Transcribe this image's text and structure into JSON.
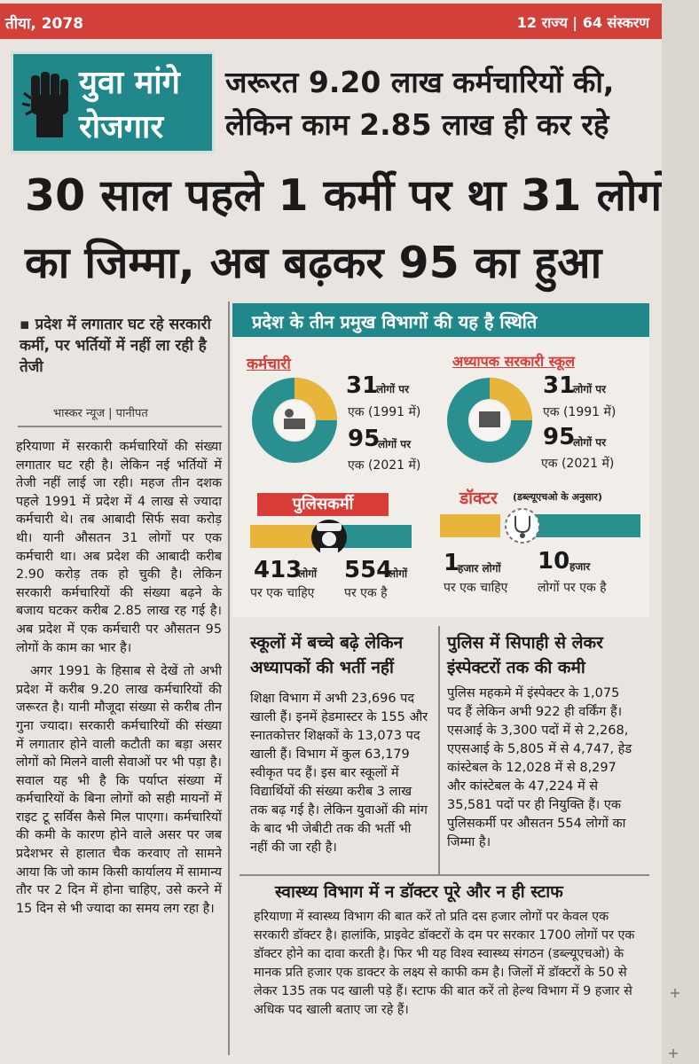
{
  "topbar": {
    "left": "तीया, 2078",
    "right": "12 राज्य | 64 संस्करण"
  },
  "badge": {
    "line1": "युवा मांगे",
    "line2": "रोजगार"
  },
  "headline": {
    "kicker1": "जरूरत 9.20 लाख कर्मचारियों की,",
    "kicker2": "लेकिन काम 2.85 लाख ही कर रहे",
    "main1": "30 साल पहले 1 कर्मी पर था 31 लोगों",
    "main2": "का जिम्मा, अब बढ़कर 95 का हुआ"
  },
  "subhead": "▪ प्रदेश में लगातार घट रहे सरकारी कर्मी, पर भर्तियों में नहीं ला रही है तेजी",
  "byline": "भास्कर न्यूज | पानीपत",
  "body_left": [
    "हरियाणा में सरकारी कर्मचारियों की संख्या लगातार घट रही है। लेकिन नई भर्तियों में तेजी नहीं लाई जा रही। महज तीन दशक पहले 1991 में प्रदेश में 4 लाख से ज्यादा कर्मचारी थे। तब आबादी सिर्फ सवा करोड़ थी। यानी औसतन 31 लोगों पर एक कर्मचारी था। अब प्रदेश की आबादी करीब 2.90 करोड़ तक हो चुकी है। लेकिन सरकारी कर्मचारियों की संख्या बढ़ने के बजाय घटकर करीब 2.85 लाख रह गई है। अब प्रदेश में एक कर्मचारी पर औसतन 95 लोगों के काम का भार है।",
    "अगर 1991 के हिसाब से देखें तो अभी प्रदेश में करीब 9.20 लाख कर्मचारियों की जरूरत है। यानी मौजूदा संख्या से करीब तीन गुना ज्यादा। सरकारी कर्मचारियों की संख्या में लगातार होने वाली कटौती का बड़ा असर लोगों को मिलने वाली सेवाओं पर भी पड़ा है। सवाल यह भी है कि पर्याप्त संख्या में कर्मचारियों के बिना लोगों को सही मायनों में राइट टू सर्विस कैसे मिल पाएगा। कर्मचारियों की कमी के कारण होने वाले असर पर जब प्रदेशभर से हालात चैक करवाए तो सामने आया कि जो काम किसी कार्यालय में सामान्य तौर पर 2 दिन में होना चाहिए, उसे करने में 15 दिन से भी ज्यादा का समय लग रहा है।"
  ],
  "infographic": {
    "header": "प्रदेश के तीन प्रमुख विभागों की यह है स्थिति",
    "employees": {
      "label": "कर्मचारी",
      "n1": "31",
      "n1_unit": "लोगों पर",
      "n1_sub": "एक (1991 में)",
      "n2": "95",
      "n2_unit": "लोगों पर",
      "n2_sub": "एक (2021 में)"
    },
    "teachers": {
      "label": "अध्यापक सरकारी स्कूल",
      "n1": "31",
      "n1_unit": "लोगों पर",
      "n1_sub": "एक (1991 में)",
      "n2": "95",
      "n2_unit": "लोगों पर",
      "n2_sub": "एक (2021 में)"
    },
    "police": {
      "label": "पुलिसकर्मी",
      "n1": "413",
      "n1_unit": "लोगों",
      "n1_sub": "पर एक चाहिए",
      "n2": "554",
      "n2_unit": "लोगों",
      "n2_sub": "पर एक है"
    },
    "doctors": {
      "label": "डॉक्टर",
      "note": "(डब्ल्यूएचओ के अनुसार)",
      "n1": "1",
      "n1_unit": "हजार लोगों",
      "n1_sub": "पर एक चाहिए",
      "n2": "10",
      "n2_unit": "हजार",
      "n2_sub": "लोगों पर एक है"
    },
    "colors": {
      "teal": "#2a8f8f",
      "yellow": "#e9b43a",
      "red": "#d93c37"
    }
  },
  "schools": {
    "title1": "स्कूलों में बच्चे बढ़े लेकिन",
    "title2": "अध्यापकों की भर्ती नहीं",
    "body": "शिक्षा विभाग में अभी 23,696 पद खाली हैं। इनमें हेडमास्टर के 155 और स्नातकोत्तर शिक्षकों के 13,073 पद खाली हैं। विभाग में कुल 63,179 स्वीकृत पद हैं। इस बार स्कूलों में विद्यार्थियों की संख्या करीब 3 लाख तक बढ़ गई है। लेकिन युवाओं की मांग के बाद भी जेबीटी तक की भर्ती भी नहीं की जा रही है।"
  },
  "police_col": {
    "title1": "पुलिस में सिपाही से लेकर",
    "title2": "इंस्पेक्टरों तक की कमी",
    "body": "पुलिस महकमे में इंस्पेक्टर के 1,075 पद हैं लेकिन अभी 922 ही वर्किंग हैं। एसआई के 3,300 पदों में से 2,268, एएसआई के 5,805 में से 4,747, हेड कांस्टेबल के 12,028 में से 8,297 और कांस्टेबल के 47,224 में से 35,581 पदों पर ही नियुक्ति हैं। एक पुलिसकर्मी पर औसतन 554 लोगों का जिम्मा है।"
  },
  "health": {
    "title": "स्वास्थ्य विभाग में न डॉक्टर पूरे और न ही स्टाफ",
    "body": "हरियाणा में स्वास्थ्य विभाग की बात करें तो प्रति दस हजार लोगों पर केवल एक सरकारी डॉक्टर है। हालांकि, प्राइवेट डॉक्टरों के दम पर सरकार 1700 लोगों पर एक डॉक्टर होने का दावा करती है। फिर भी यह विश्व स्वास्थ्य संगठन (डब्ल्यूएचओ) के मानक प्रति हजार एक डाक्टर के लक्ष्य से काफी कम है। जिलों में डॉक्टरों के 50 से लेकर 135 तक पद खाली पड़े हैं। स्टाफ की बात करें तो हेल्थ विभाग में 9 हजार से अधिक पद खाली बताए जा रहे हैं।"
  }
}
